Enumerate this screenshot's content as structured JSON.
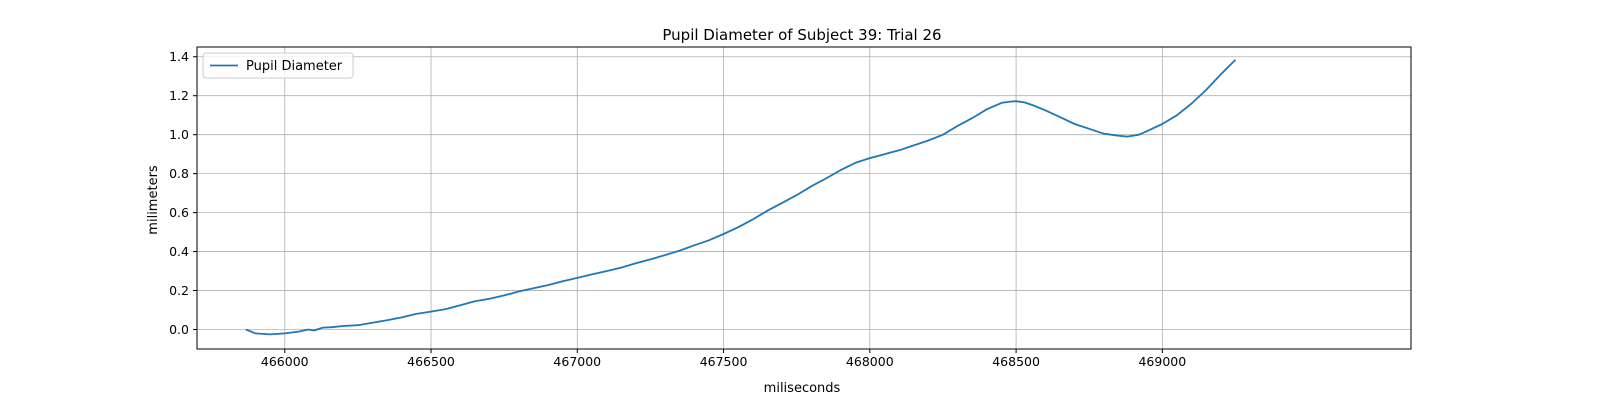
{
  "chart_data": {
    "type": "line",
    "title": "Pupil Diameter of Subject 39: Trial 26",
    "xlabel": "miliseconds",
    "ylabel": "milimeters",
    "xlim": [
      465700,
      469850
    ],
    "ylim": [
      -0.1,
      1.45
    ],
    "xticks": [
      466000,
      466500,
      467000,
      467500,
      468000,
      468500,
      469000
    ],
    "yticks": [
      0.0,
      0.2,
      0.4,
      0.6,
      0.8,
      1.0,
      1.2,
      1.4
    ],
    "ytick_labels": [
      "0.0",
      "0.2",
      "0.4",
      "0.6",
      "0.8",
      "1.0",
      "1.2",
      "1.4"
    ],
    "grid": true,
    "legend_position": "top-left",
    "colors": {
      "series": "#1f77b4",
      "grid": "#b0b0b0",
      "axes": "#000000"
    },
    "series": [
      {
        "name": "Pupil Diameter",
        "x": [
          465867,
          465900,
          465950,
          466000,
          466050,
          466080,
          466100,
          466130,
          466160,
          466200,
          466250,
          466300,
          466350,
          466400,
          466450,
          466500,
          466550,
          466600,
          466650,
          466700,
          466750,
          466800,
          466850,
          466900,
          466950,
          467000,
          467050,
          467100,
          467150,
          467200,
          467250,
          467300,
          467350,
          467400,
          467450,
          467500,
          467550,
          467600,
          467650,
          467700,
          467750,
          467800,
          467850,
          467900,
          467950,
          468000,
          468050,
          468100,
          468150,
          468200,
          468250,
          468300,
          468350,
          468400,
          468450,
          468480,
          468500,
          468530,
          468560,
          468600,
          468650,
          468700,
          468750,
          468800,
          468850,
          468880,
          468920,
          468950,
          469000,
          469050,
          469100,
          469150,
          469200,
          469250
        ],
        "y": [
          0.0,
          -0.02,
          -0.025,
          -0.02,
          -0.01,
          0.0,
          -0.005,
          0.01,
          0.012,
          0.018,
          0.022,
          0.035,
          0.048,
          0.062,
          0.08,
          0.092,
          0.105,
          0.125,
          0.145,
          0.158,
          0.175,
          0.195,
          0.212,
          0.228,
          0.248,
          0.265,
          0.283,
          0.3,
          0.318,
          0.34,
          0.36,
          0.382,
          0.405,
          0.432,
          0.458,
          0.49,
          0.525,
          0.565,
          0.61,
          0.65,
          0.69,
          0.735,
          0.775,
          0.818,
          0.855,
          0.88,
          0.9,
          0.92,
          0.945,
          0.97,
          1.0,
          1.045,
          1.085,
          1.13,
          1.163,
          1.17,
          1.172,
          1.165,
          1.15,
          1.125,
          1.09,
          1.055,
          1.03,
          1.005,
          0.995,
          0.99,
          1.0,
          1.02,
          1.055,
          1.1,
          1.16,
          1.23,
          1.31,
          1.385
        ]
      }
    ]
  }
}
